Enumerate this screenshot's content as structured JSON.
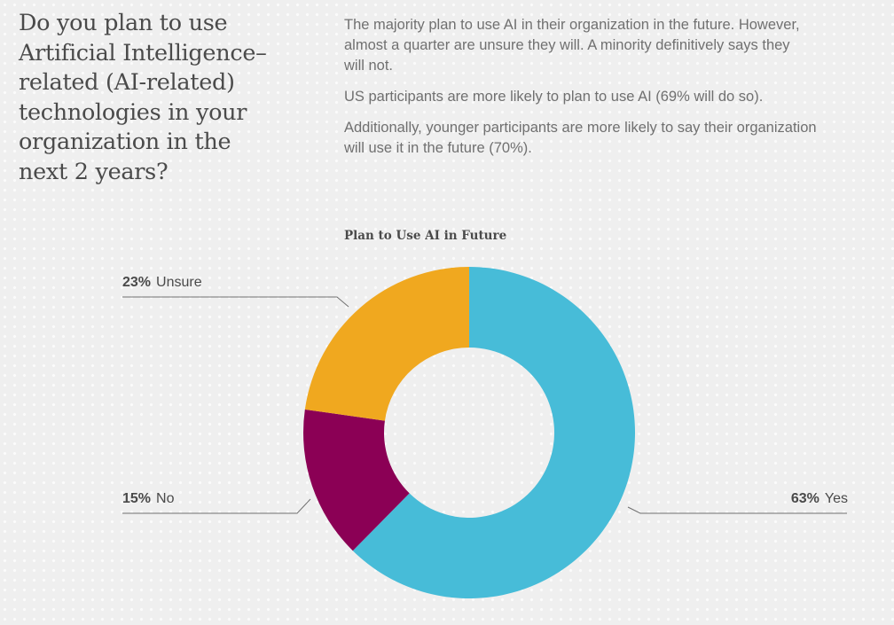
{
  "question": {
    "lines": [
      "Do you plan to use",
      "Artificial Intelligence–",
      "related (AI-related)",
      "technologies in your",
      "organization in the",
      "next 2 years?"
    ]
  },
  "summary": {
    "paragraphs": [
      [
        "The majority plan to use AI in their organization in the future. However,",
        "almost a quarter are unsure they will. A minority definitively says they",
        "will not."
      ],
      [
        "US participants are more likely to plan to use AI (69% will do so)."
      ],
      [
        "Additionally, younger participants are more likely to say their organization",
        "will use it in the future (70%)."
      ]
    ]
  },
  "chart_data": {
    "type": "pie",
    "title": "Plan to Use AI in Future",
    "categories": [
      "Yes",
      "No",
      "Unsure"
    ],
    "values": [
      63,
      15,
      23
    ],
    "labels": [
      "63%",
      "15%",
      "23%"
    ],
    "colors": [
      "#47bcd8",
      "#8b0055",
      "#f0a81f"
    ],
    "donut": true,
    "legend": "callouts"
  }
}
